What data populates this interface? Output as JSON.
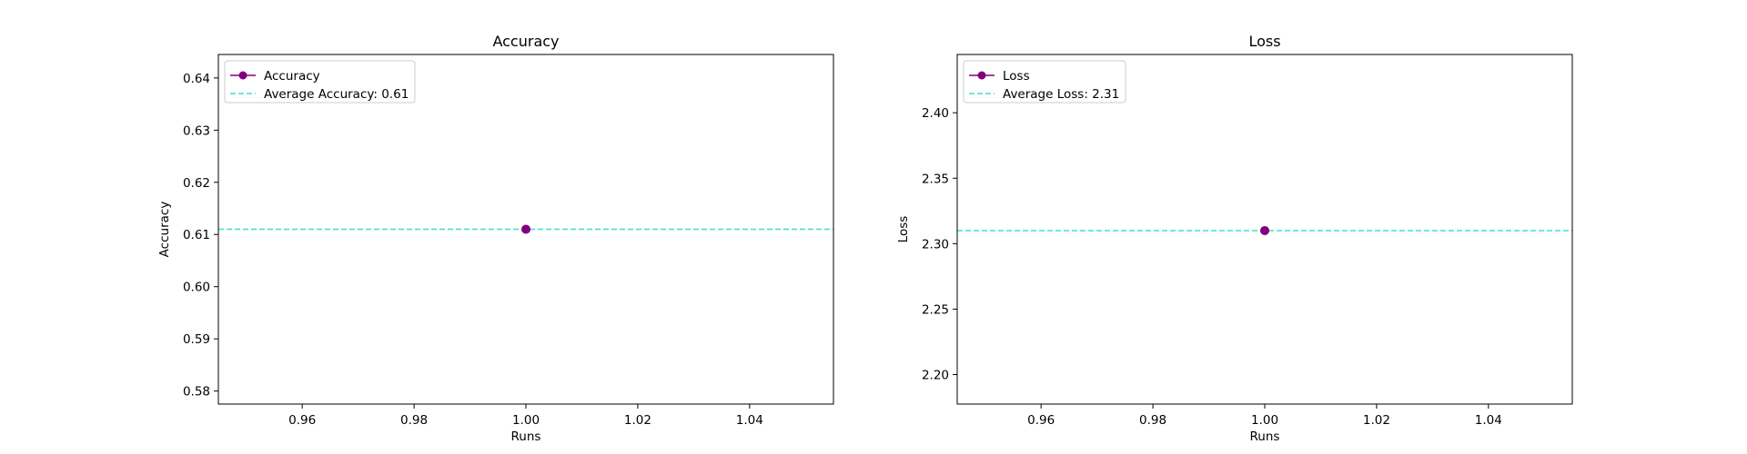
{
  "chart_data": [
    {
      "type": "line",
      "title": "Accuracy",
      "xlabel": "Runs",
      "ylabel": "Accuracy",
      "xlim": [
        0.945,
        1.055
      ],
      "ylim": [
        0.5775,
        0.6445
      ],
      "xticks": [
        0.96,
        0.98,
        1.0,
        1.02,
        1.04
      ],
      "xtick_labels": [
        "0.96",
        "0.98",
        "1.00",
        "1.02",
        "1.04"
      ],
      "yticks": [
        0.58,
        0.59,
        0.6,
        0.61,
        0.62,
        0.63,
        0.64
      ],
      "ytick_labels": [
        "0.58",
        "0.59",
        "0.60",
        "0.61",
        "0.62",
        "0.63",
        "0.64"
      ],
      "grid": false,
      "legend_position": "top-left",
      "series": [
        {
          "name": "Accuracy",
          "style": "line-marker",
          "color": "#800080",
          "x": [
            1.0
          ],
          "y": [
            0.611
          ]
        }
      ],
      "reference_lines": [
        {
          "name": "Average Accuracy: 0.61",
          "style": "dashed",
          "color": "#40e0d0",
          "y": 0.611
        }
      ]
    },
    {
      "type": "line",
      "title": "Loss",
      "xlabel": "Runs",
      "ylabel": "Loss",
      "xlim": [
        0.945,
        1.055
      ],
      "ylim": [
        2.1775,
        2.4445
      ],
      "xticks": [
        0.96,
        0.98,
        1.0,
        1.02,
        1.04
      ],
      "xtick_labels": [
        "0.96",
        "0.98",
        "1.00",
        "1.02",
        "1.04"
      ],
      "yticks": [
        2.2,
        2.25,
        2.3,
        2.35,
        2.4
      ],
      "ytick_labels": [
        "2.20",
        "2.25",
        "2.30",
        "2.35",
        "2.40"
      ],
      "grid": false,
      "legend_position": "top-left",
      "series": [
        {
          "name": "Loss",
          "style": "line-marker",
          "color": "#800080",
          "x": [
            1.0
          ],
          "y": [
            2.31
          ]
        }
      ],
      "reference_lines": [
        {
          "name": "Average Loss: 2.31",
          "style": "dashed",
          "color": "#40e0d0",
          "y": 2.31
        }
      ]
    }
  ]
}
